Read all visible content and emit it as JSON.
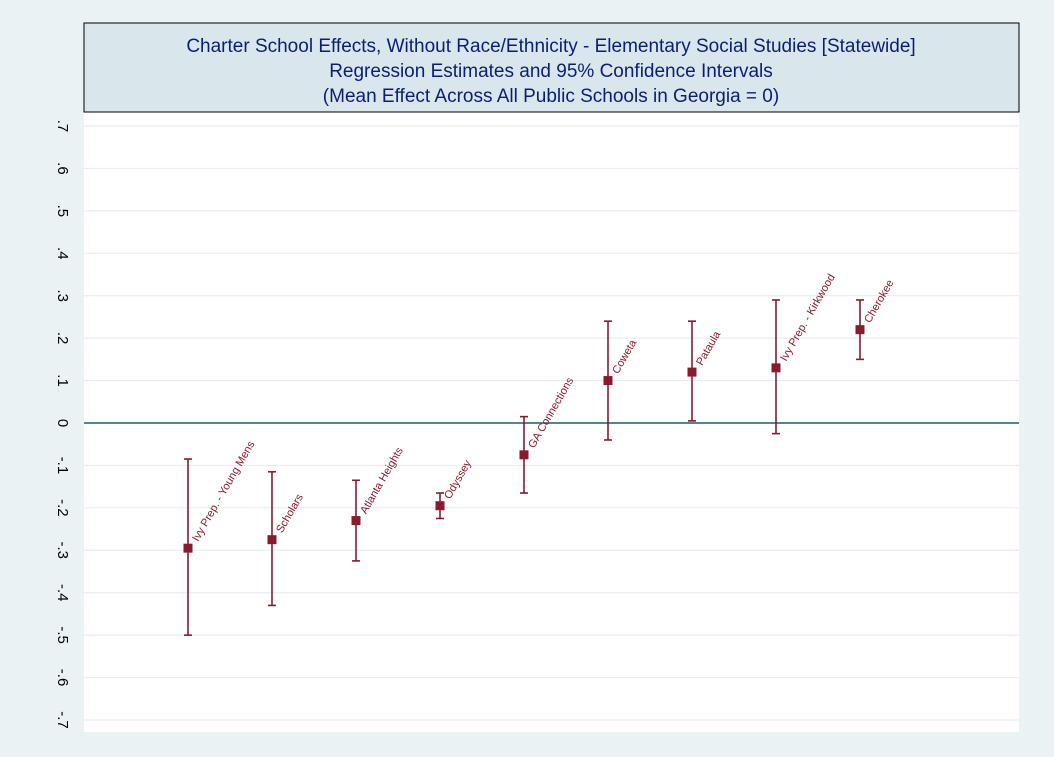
{
  "colors": {
    "outer_background": "#eaf2f3",
    "plot_background": "#ffffff",
    "title_box": "#d9e6ec",
    "title_text": "#0a1e78",
    "grid": "#e4ebee",
    "zero_line": "#1f5f5b",
    "marker": "#8b1a2b",
    "axis_text": "#000000"
  },
  "chart_data": {
    "type": "scatter",
    "title": [
      "Charter School Effects, Without Race/Ethnicity - Elementary Social Studies [Statewide]",
      "Regression Estimates and 95% Confidence Intervals",
      "(Mean Effect Across All Public Schools in Georgia = 0)"
    ],
    "xlabel": "",
    "ylabel": "",
    "ylim": [
      -0.7,
      0.7
    ],
    "y_ticks": [
      -0.7,
      -0.6,
      -0.5,
      -0.4,
      -0.3,
      -0.2,
      -0.1,
      0,
      0.1,
      0.2,
      0.3,
      0.4,
      0.5,
      0.6,
      0.7
    ],
    "y_tick_labels": [
      "-.7",
      "-.6",
      "-.5",
      "-.4",
      "-.3",
      "-.2",
      "-.1",
      "0",
      ".1",
      ".2",
      ".3",
      ".4",
      ".5",
      ".6",
      ".7"
    ],
    "reference_line": 0,
    "grid": true,
    "points": [
      {
        "label": "Ivy Prep. - Young Mens",
        "estimate": -0.295,
        "ci_low": -0.5,
        "ci_high": -0.085
      },
      {
        "label": "Scholars",
        "estimate": -0.275,
        "ci_low": -0.43,
        "ci_high": -0.115
      },
      {
        "label": "Atlanta Heights",
        "estimate": -0.23,
        "ci_low": -0.325,
        "ci_high": -0.135
      },
      {
        "label": "Odyssey",
        "estimate": -0.195,
        "ci_low": -0.225,
        "ci_high": -0.165
      },
      {
        "label": "GA Connections",
        "estimate": -0.075,
        "ci_low": -0.165,
        "ci_high": 0.015
      },
      {
        "label": "Coweta",
        "estimate": 0.1,
        "ci_low": -0.04,
        "ci_high": 0.24
      },
      {
        "label": "Pataula",
        "estimate": 0.12,
        "ci_low": 0.005,
        "ci_high": 0.24
      },
      {
        "label": "Ivy Prep. - Kirkwood",
        "estimate": 0.13,
        "ci_low": -0.025,
        "ci_high": 0.29
      },
      {
        "label": "Cherokee",
        "estimate": 0.22,
        "ci_low": 0.15,
        "ci_high": 0.29
      }
    ]
  }
}
